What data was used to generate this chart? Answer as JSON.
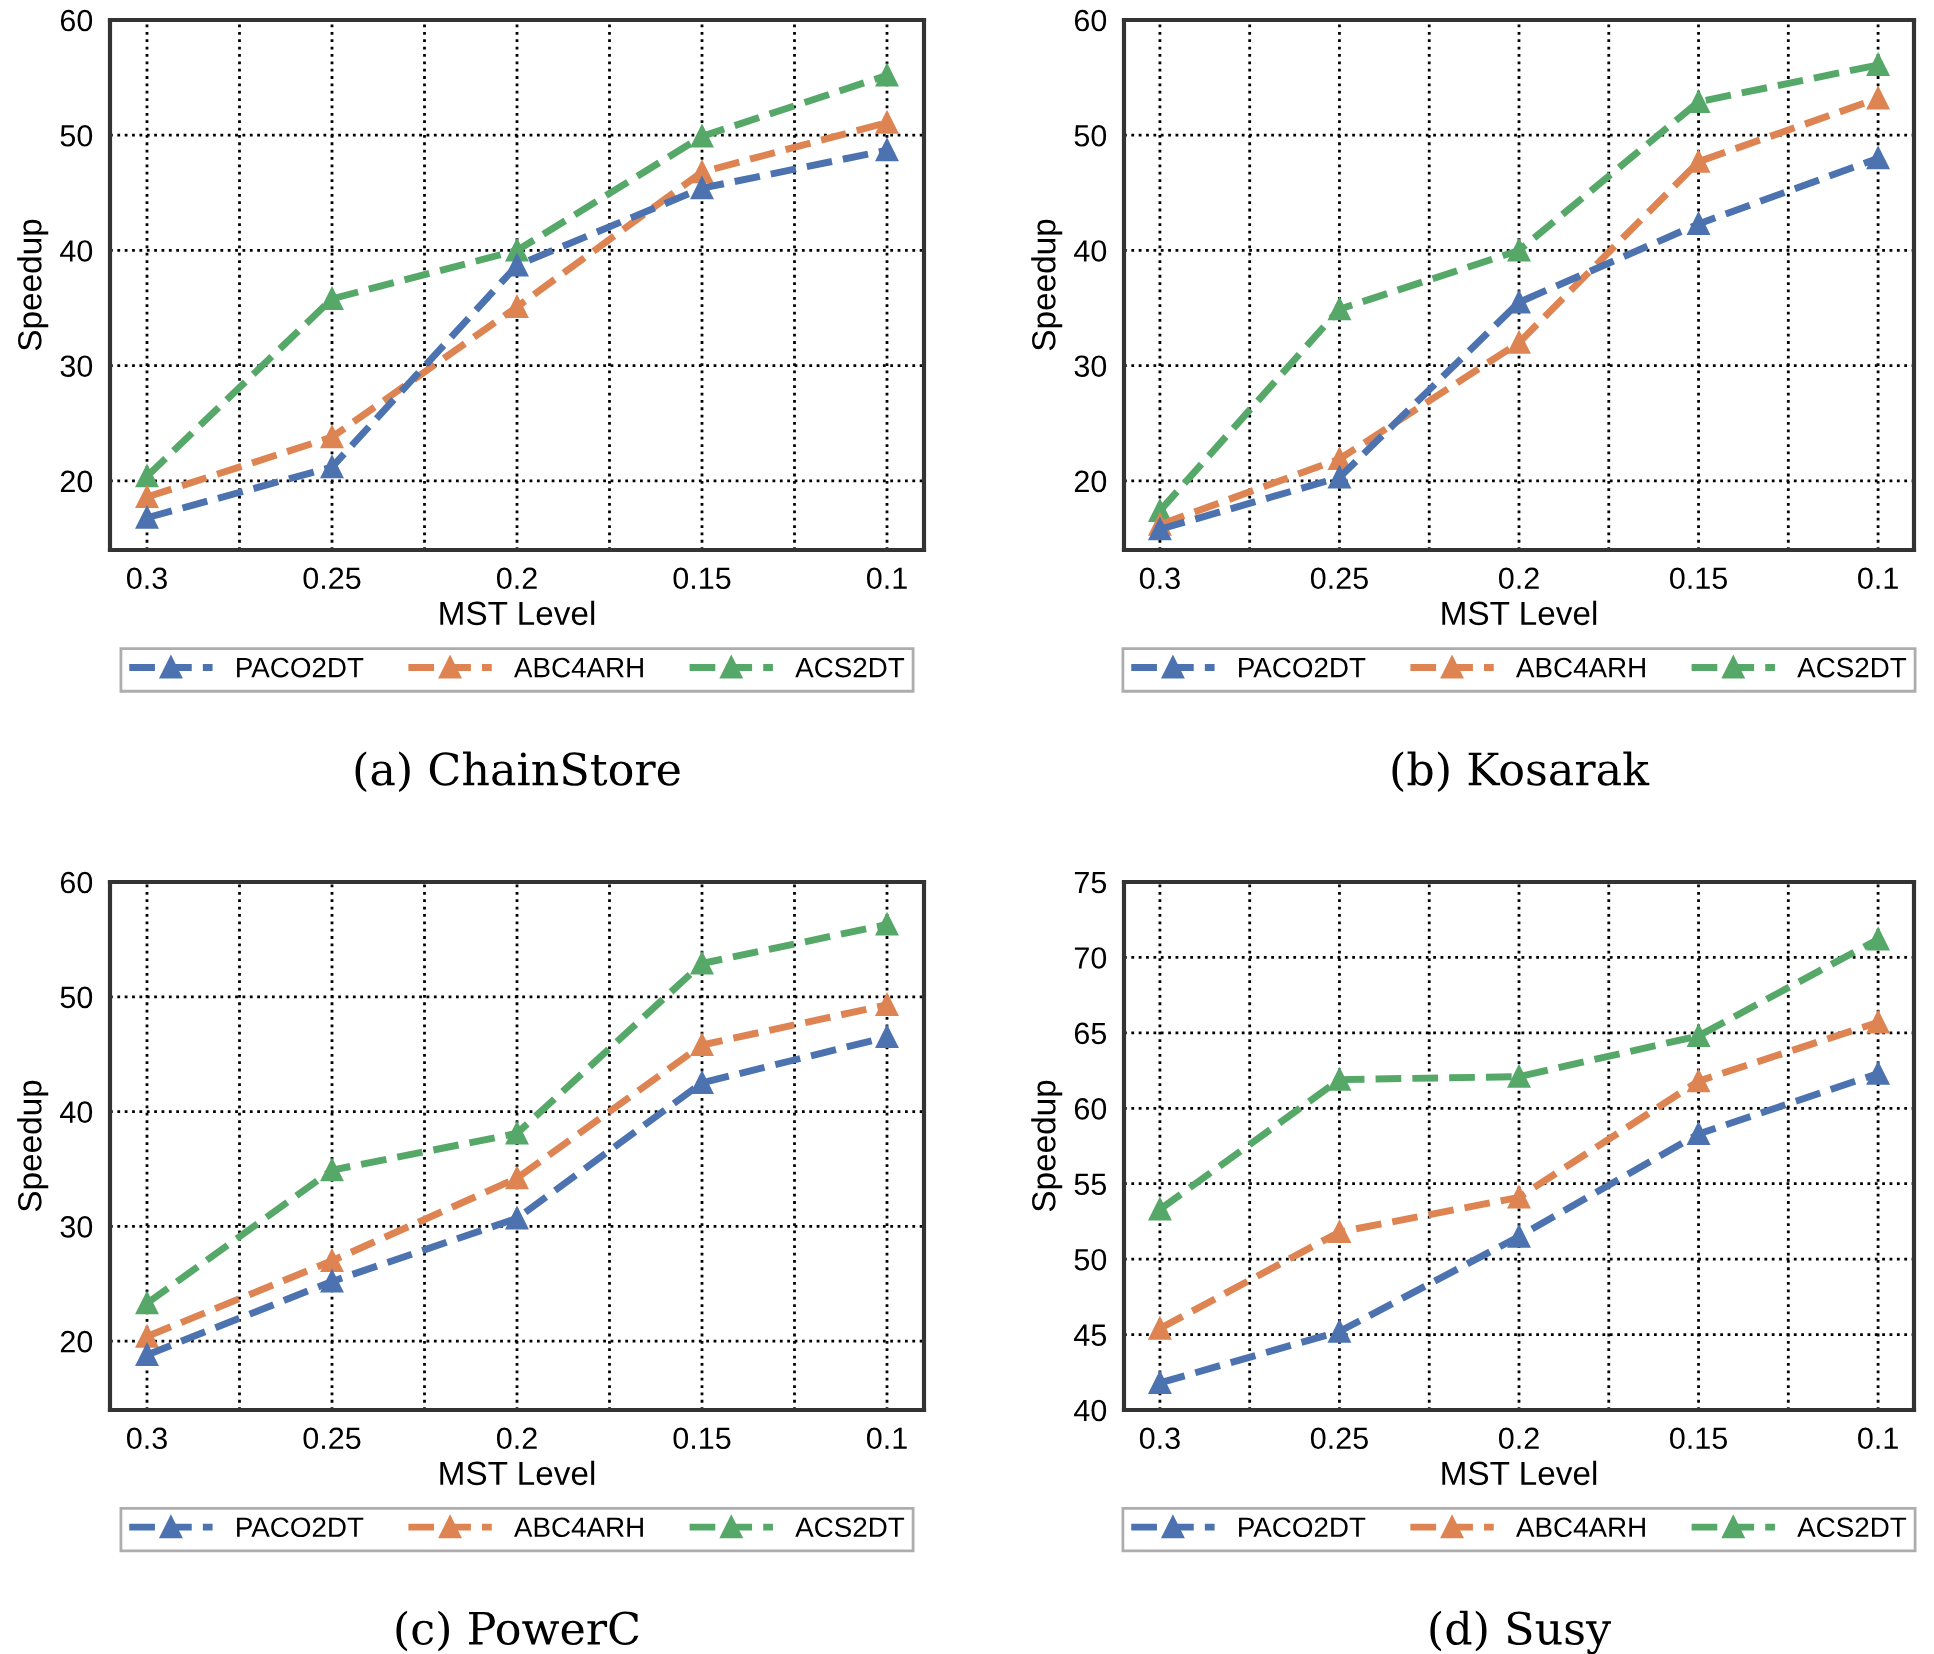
{
  "chart_data": [
    {
      "type": "line",
      "xlabel": "MST Level",
      "ylabel": "Speedup",
      "x": [
        0.3,
        0.25,
        0.2,
        0.15,
        0.1
      ],
      "xlim": [
        0.31,
        0.09
      ],
      "xticks": [
        0.3,
        {
          "value": 0.275,
          "label": null
        },
        0.25,
        {
          "value": 0.225,
          "label": null
        },
        0.2,
        {
          "value": 0.175,
          "label": null
        },
        0.15,
        {
          "value": 0.125,
          "label": null
        },
        0.1
      ],
      "ylim": [
        14,
        60
      ],
      "yticks": [
        20,
        30,
        40,
        50,
        60
      ],
      "grid": true,
      "legend": "bottom",
      "marker": "triangle",
      "line_style": "dashed",
      "annotations": [
        "(a) ChainStore"
      ],
      "series": [
        {
          "name": "PACO2DT",
          "color": "#4c72b0",
          "values": [
            16.8,
            21.2,
            38.7,
            45.4,
            48.7
          ]
        },
        {
          "name": "ABC4ARH",
          "color": "#dd8452",
          "values": [
            18.6,
            23.8,
            35.1,
            46.8,
            51.1
          ]
        },
        {
          "name": "ACS2DT",
          "color": "#55a868",
          "values": [
            20.4,
            35.8,
            40.0,
            49.9,
            55.2
          ]
        }
      ]
    },
    {
      "type": "line",
      "xlabel": "MST Level",
      "ylabel": "Speedup",
      "x": [
        0.3,
        0.25,
        0.2,
        0.15,
        0.1
      ],
      "xlim": [
        0.31,
        0.09
      ],
      "xticks": [
        0.3,
        {
          "value": 0.275,
          "label": null
        },
        0.25,
        {
          "value": 0.225,
          "label": null
        },
        0.2,
        {
          "value": 0.175,
          "label": null
        },
        0.15,
        {
          "value": 0.125,
          "label": null
        },
        0.1
      ],
      "ylim": [
        14,
        60
      ],
      "yticks": [
        20,
        30,
        40,
        50,
        60
      ],
      "grid": true,
      "legend": "bottom",
      "marker": "triangle",
      "line_style": "dashed",
      "annotations": [
        "(b) Kosarak"
      ],
      "series": [
        {
          "name": "PACO2DT",
          "color": "#4c72b0",
          "values": [
            15.8,
            20.3,
            35.5,
            42.3,
            48.0
          ]
        },
        {
          "name": "ABC4ARH",
          "color": "#dd8452",
          "values": [
            16.2,
            21.9,
            32.0,
            47.7,
            53.2
          ]
        },
        {
          "name": "ACS2DT",
          "color": "#55a868",
          "values": [
            17.4,
            34.9,
            40.0,
            52.9,
            56.1
          ]
        }
      ]
    },
    {
      "type": "line",
      "xlabel": "MST Level",
      "ylabel": "Speedup",
      "x": [
        0.3,
        0.25,
        0.2,
        0.15,
        0.1
      ],
      "xlim": [
        0.31,
        0.09
      ],
      "xticks": [
        0.3,
        {
          "value": 0.275,
          "label": null
        },
        0.25,
        {
          "value": 0.225,
          "label": null
        },
        0.2,
        {
          "value": 0.175,
          "label": null
        },
        0.15,
        {
          "value": 0.125,
          "label": null
        },
        0.1
      ],
      "ylim": [
        14,
        60
      ],
      "yticks": [
        20,
        30,
        40,
        50,
        60
      ],
      "grid": true,
      "legend": "bottom",
      "marker": "triangle",
      "line_style": "dashed",
      "annotations": [
        "(c) PowerC"
      ],
      "series": [
        {
          "name": "PACO2DT",
          "color": "#4c72b0",
          "values": [
            18.8,
            25.2,
            30.7,
            42.5,
            46.5
          ]
        },
        {
          "name": "ABC4ARH",
          "color": "#dd8452",
          "values": [
            20.4,
            27.0,
            34.2,
            45.8,
            49.3
          ]
        },
        {
          "name": "ACS2DT",
          "color": "#55a868",
          "values": [
            23.3,
            34.9,
            38.1,
            52.9,
            56.3
          ]
        }
      ]
    },
    {
      "type": "line",
      "xlabel": "MST Level",
      "ylabel": "Speedup",
      "x": [
        0.3,
        0.25,
        0.2,
        0.15,
        0.1
      ],
      "xlim": [
        0.31,
        0.09
      ],
      "xticks": [
        0.3,
        {
          "value": 0.275,
          "label": null
        },
        0.25,
        {
          "value": 0.225,
          "label": null
        },
        0.2,
        {
          "value": 0.175,
          "label": null
        },
        0.15,
        {
          "value": 0.125,
          "label": null
        },
        0.1
      ],
      "ylim": [
        40,
        75
      ],
      "yticks": [
        40,
        45,
        50,
        55,
        60,
        65,
        70,
        75
      ],
      "grid": true,
      "legend": "bottom",
      "marker": "triangle",
      "line_style": "dashed",
      "annotations": [
        "(d) Susy"
      ],
      "series": [
        {
          "name": "PACO2DT",
          "color": "#4c72b0",
          "values": [
            41.8,
            45.2,
            51.5,
            58.3,
            62.3
          ]
        },
        {
          "name": "ABC4ARH",
          "color": "#dd8452",
          "values": [
            45.4,
            51.8,
            54.1,
            61.8,
            65.7
          ]
        },
        {
          "name": "ACS2DT",
          "color": "#55a868",
          "values": [
            53.3,
            61.9,
            62.1,
            64.8,
            71.2
          ]
        }
      ]
    }
  ]
}
